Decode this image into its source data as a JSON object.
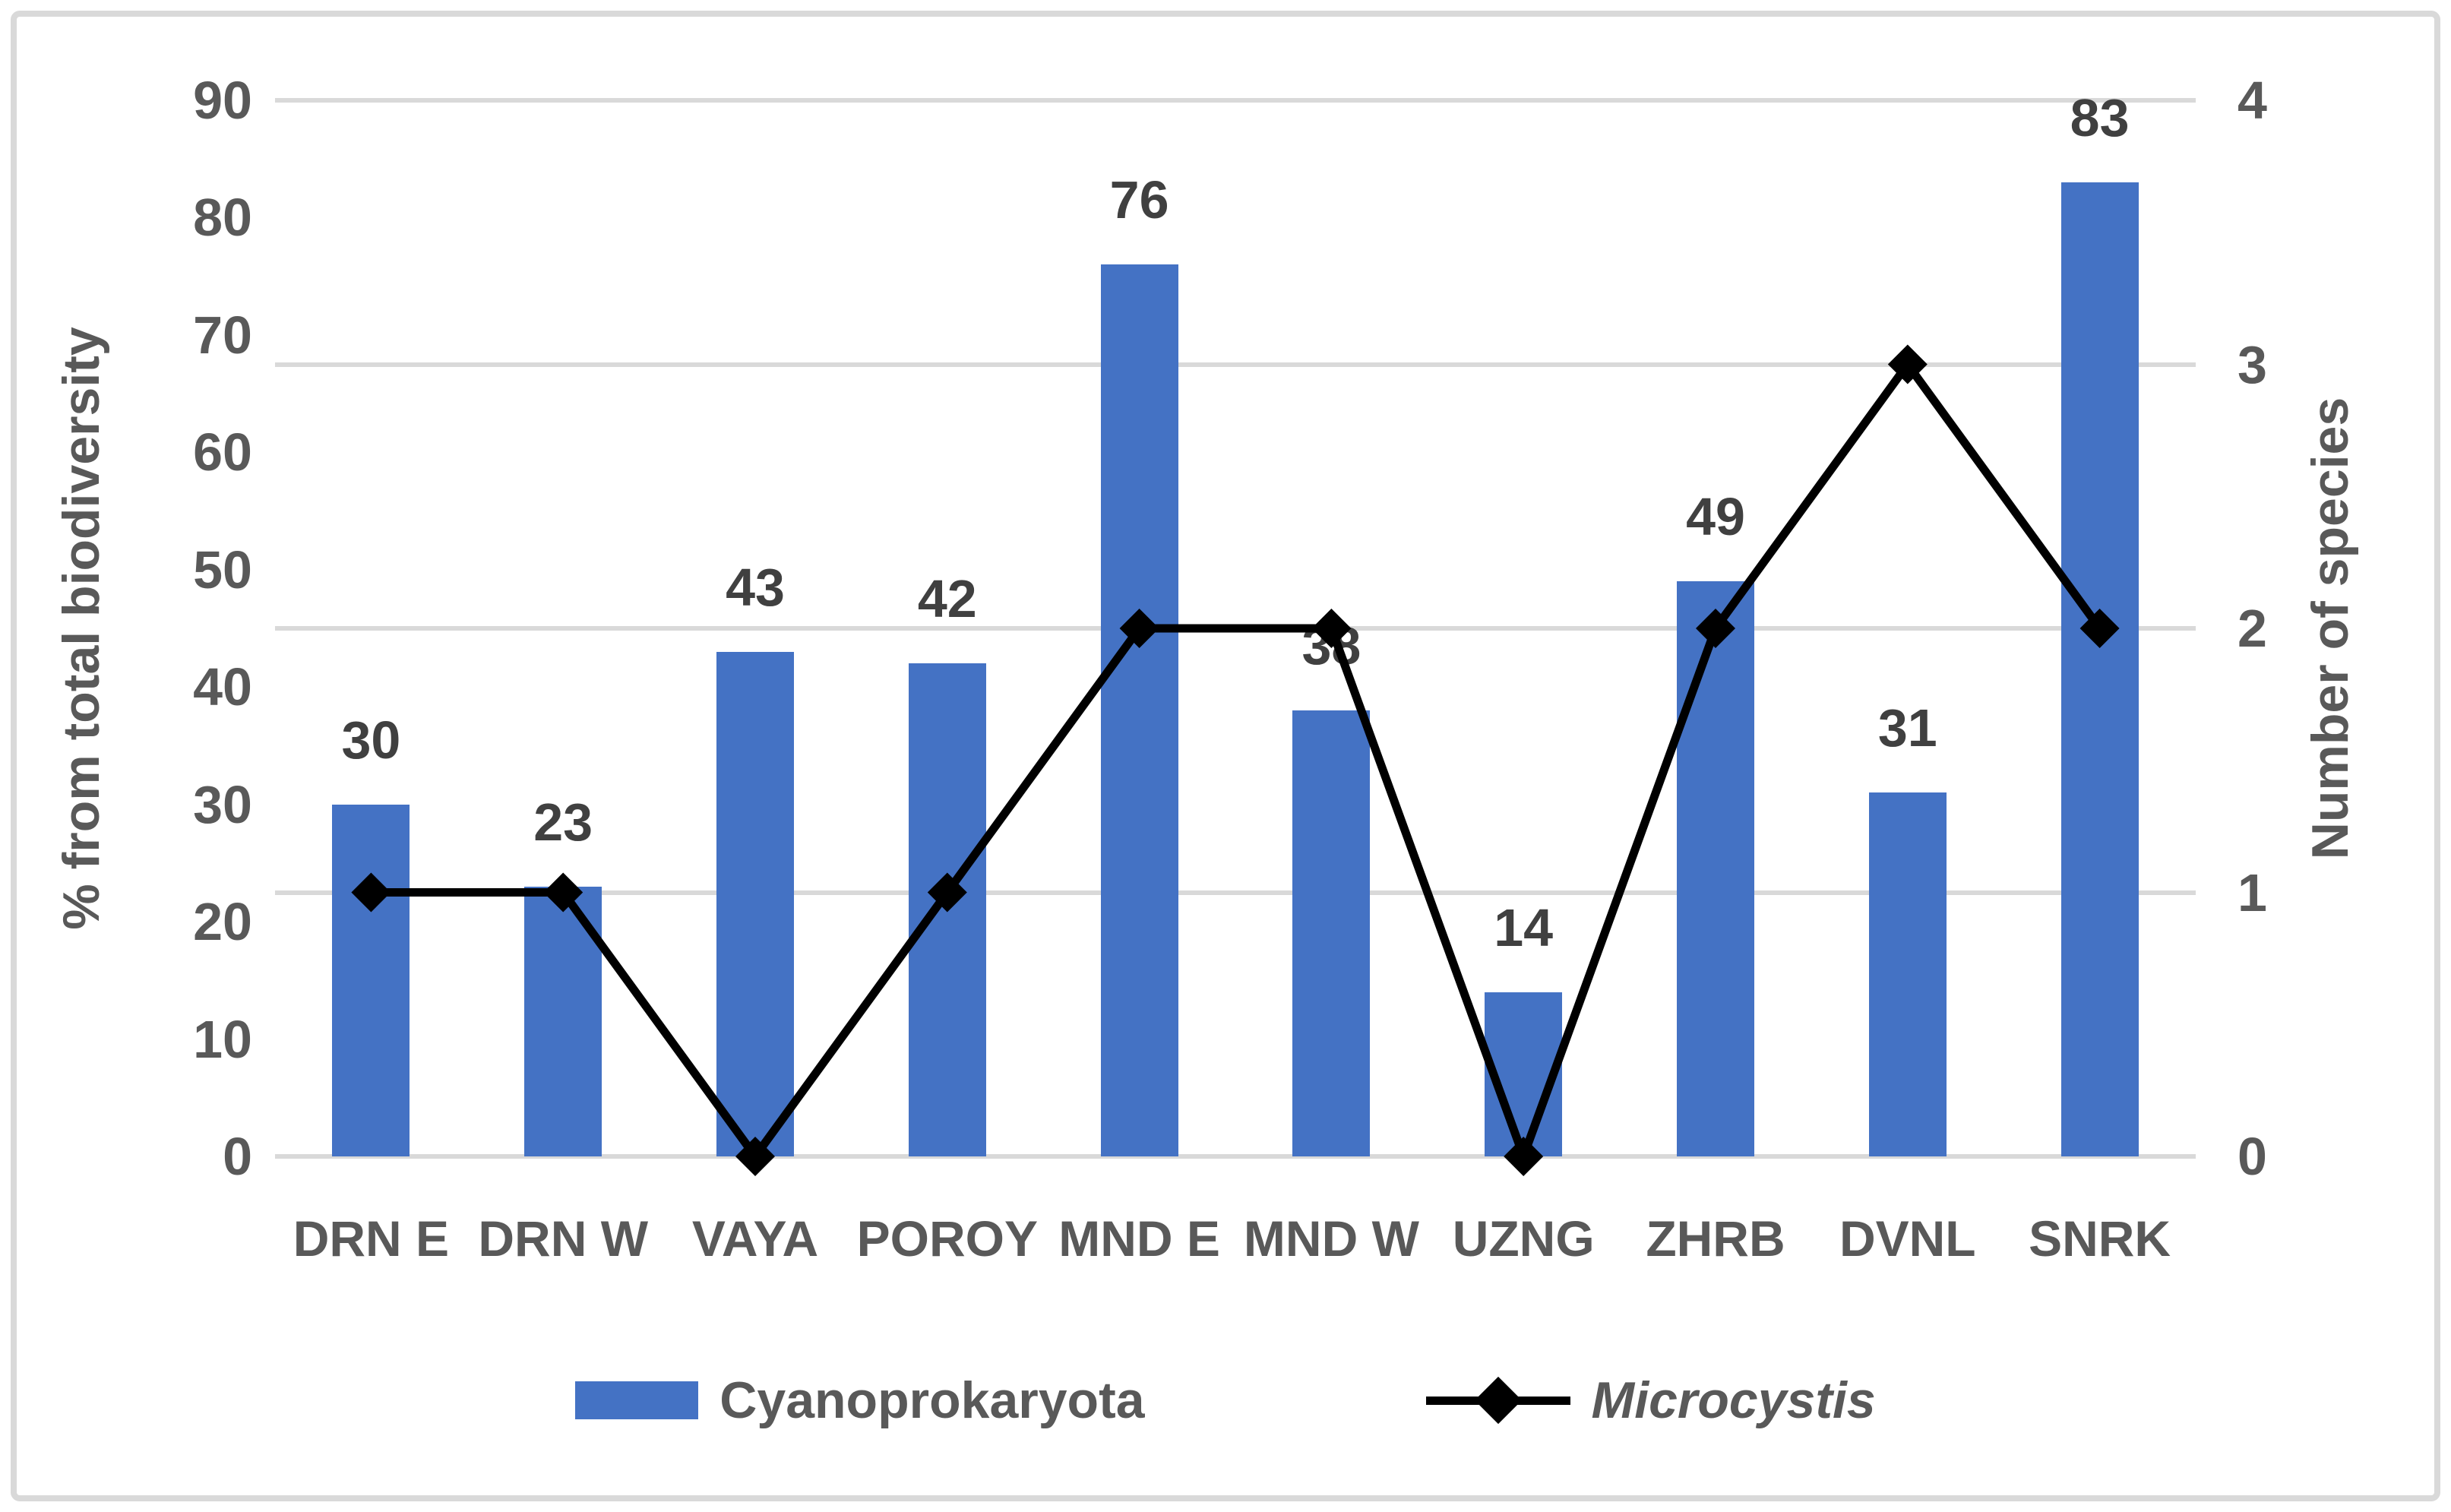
{
  "chart_data": {
    "type": "bar+line combo",
    "categories": [
      "DRN E",
      "DRN W",
      "VAYA",
      "POROY",
      "MND E",
      "MND W",
      "UZNG",
      "ZHRB",
      "DVNL",
      "SNRK"
    ],
    "series": [
      {
        "name": "Cyanoprokaryota",
        "type": "bar",
        "axis": "left",
        "color": "#4472C4",
        "values": [
          30,
          23,
          43,
          42,
          76,
          38,
          14,
          49,
          31,
          83
        ],
        "data_labels": [
          30,
          23,
          43,
          42,
          76,
          38,
          14,
          49,
          31,
          83
        ]
      },
      {
        "name": "Microcystis",
        "type": "line",
        "axis": "right",
        "color": "#000000",
        "marker": "diamond",
        "values": [
          1,
          1,
          0,
          1,
          2,
          2,
          0,
          2,
          3,
          2
        ]
      }
    ],
    "left_axis": {
      "title": "% from total biodiversity",
      "min": 0,
      "max": 90,
      "step": 10
    },
    "right_axis": {
      "title": "Number of species",
      "min": 0,
      "max": 4,
      "step": 1
    },
    "gridlines": {
      "show": true,
      "at_right_axis_values": [
        0,
        1,
        2,
        3,
        4
      ],
      "color": "#D9D9D9"
    },
    "legend": {
      "position": "bottom",
      "items": [
        {
          "label": "Cyanoprokaryota",
          "marker": "square",
          "color": "#4472C4",
          "italic": false
        },
        {
          "label": "Microcystis",
          "marker": "line-diamond",
          "color": "#000000",
          "italic": true
        }
      ]
    },
    "styles": {
      "bar_color": "#4472C4",
      "line_color": "#000000",
      "gridline_color": "#D9D9D9",
      "tick_text_color": "#595959",
      "data_label_color": "#404040",
      "frame_border_color": "#D9D9D9",
      "background": "#FFFFFF"
    }
  }
}
